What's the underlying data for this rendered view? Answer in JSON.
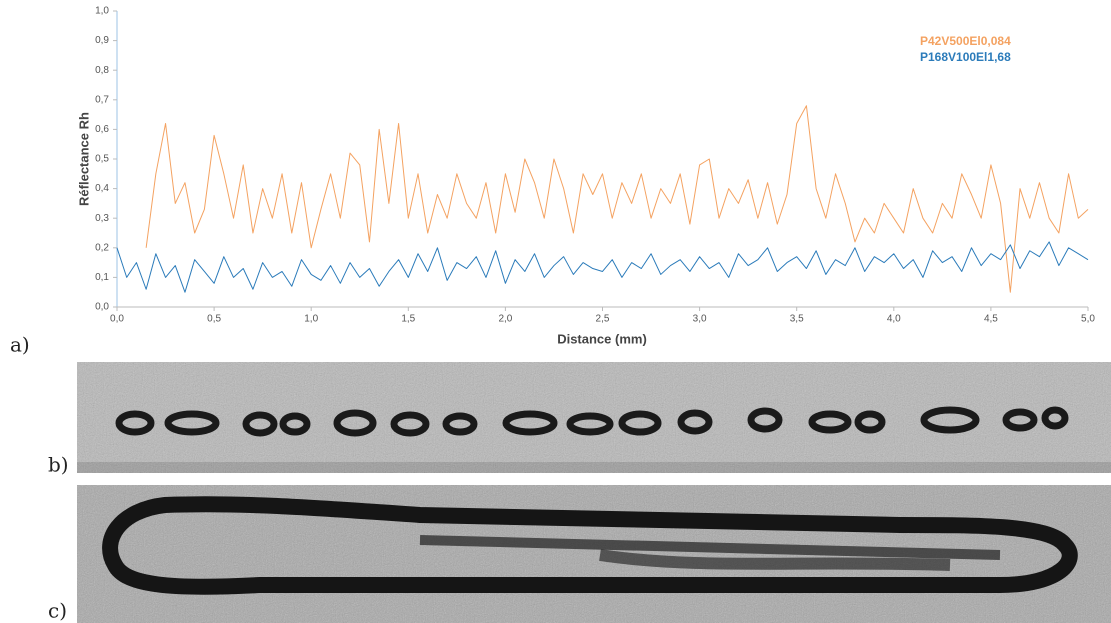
{
  "chart_data": {
    "type": "line",
    "y_label": "Réflectance Rh",
    "x_label": "Distance (mm)",
    "x": [
      0,
      0.05,
      0.1,
      0.15,
      0.2,
      0.25,
      0.3,
      0.35,
      0.4,
      0.45,
      0.5,
      0.55,
      0.6,
      0.65,
      0.7,
      0.75,
      0.8,
      0.85,
      0.9,
      0.95,
      1,
      1.05,
      1.1,
      1.15,
      1.2,
      1.25,
      1.3,
      1.35,
      1.4,
      1.45,
      1.5,
      1.55,
      1.6,
      1.65,
      1.7,
      1.75,
      1.8,
      1.85,
      1.9,
      1.95,
      2,
      2.05,
      2.1,
      2.15,
      2.2,
      2.25,
      2.3,
      2.35,
      2.4,
      2.45,
      2.5,
      2.55,
      2.6,
      2.65,
      2.7,
      2.75,
      2.8,
      2.85,
      2.9,
      2.95,
      3,
      3.05,
      3.1,
      3.15,
      3.2,
      3.25,
      3.3,
      3.35,
      3.4,
      3.45,
      3.5,
      3.55,
      3.6,
      3.65,
      3.7,
      3.75,
      3.8,
      3.85,
      3.9,
      3.95,
      4,
      4.05,
      4.1,
      4.15,
      4.2,
      4.25,
      4.3,
      4.35,
      4.4,
      4.45,
      4.5,
      4.55,
      4.6,
      4.65,
      4.7,
      4.75,
      4.8,
      4.85,
      4.9,
      4.95,
      5
    ],
    "series": [
      {
        "name": "P42V500El0,084",
        "color": "#f4a261",
        "values": [
          null,
          null,
          null,
          0.2,
          0.45,
          0.62,
          0.35,
          0.42,
          0.25,
          0.33,
          0.58,
          0.45,
          0.3,
          0.48,
          0.25,
          0.4,
          0.3,
          0.45,
          0.25,
          0.42,
          0.2,
          0.33,
          0.45,
          0.3,
          0.52,
          0.48,
          0.22,
          0.6,
          0.35,
          0.62,
          0.3,
          0.45,
          0.25,
          0.38,
          0.3,
          0.45,
          0.35,
          0.3,
          0.42,
          0.25,
          0.45,
          0.32,
          0.5,
          0.42,
          0.3,
          0.5,
          0.4,
          0.25,
          0.45,
          0.38,
          0.45,
          0.3,
          0.42,
          0.35,
          0.45,
          0.3,
          0.4,
          0.35,
          0.45,
          0.28,
          0.48,
          0.5,
          0.3,
          0.4,
          0.35,
          0.43,
          0.3,
          0.42,
          0.28,
          0.38,
          0.62,
          0.68,
          0.4,
          0.3,
          0.45,
          0.35,
          0.22,
          0.3,
          0.25,
          0.35,
          0.3,
          0.25,
          0.4,
          0.3,
          0.25,
          0.35,
          0.3,
          0.45,
          0.38,
          0.3,
          0.48,
          0.35,
          0.05,
          0.4,
          0.3,
          0.42,
          0.3,
          0.25,
          0.45,
          0.3,
          0.33
        ]
      },
      {
        "name": "P168V100El1,68",
        "color": "#2b7bba",
        "values": [
          0.2,
          0.1,
          0.15,
          0.06,
          0.18,
          0.1,
          0.14,
          0.05,
          0.16,
          0.12,
          0.08,
          0.17,
          0.1,
          0.13,
          0.06,
          0.15,
          0.1,
          0.12,
          0.07,
          0.16,
          0.11,
          0.09,
          0.14,
          0.08,
          0.15,
          0.1,
          0.13,
          0.07,
          0.12,
          0.16,
          0.1,
          0.18,
          0.12,
          0.2,
          0.09,
          0.15,
          0.13,
          0.17,
          0.1,
          0.19,
          0.08,
          0.16,
          0.12,
          0.18,
          0.1,
          0.14,
          0.17,
          0.11,
          0.15,
          0.13,
          0.12,
          0.16,
          0.1,
          0.15,
          0.13,
          0.18,
          0.11,
          0.14,
          0.16,
          0.12,
          0.17,
          0.13,
          0.15,
          0.1,
          0.18,
          0.14,
          0.16,
          0.2,
          0.12,
          0.15,
          0.17,
          0.13,
          0.19,
          0.11,
          0.16,
          0.14,
          0.2,
          0.12,
          0.17,
          0.15,
          0.18,
          0.13,
          0.16,
          0.1,
          0.19,
          0.15,
          0.17,
          0.12,
          0.2,
          0.14,
          0.18,
          0.16,
          0.21,
          0.13,
          0.19,
          0.17,
          0.22,
          0.14,
          0.2,
          0.18,
          0.16
        ]
      }
    ],
    "xlim": [
      0,
      5
    ],
    "xticks": [
      {
        "value": 0,
        "label": "0,0"
      },
      {
        "value": 0.5,
        "label": "0,5"
      },
      {
        "value": 1,
        "label": "1,0"
      },
      {
        "value": 1.5,
        "label": "1,5"
      },
      {
        "value": 2,
        "label": "2,0"
      },
      {
        "value": 2.5,
        "label": "2,5"
      },
      {
        "value": 3,
        "label": "3,0"
      },
      {
        "value": 3.5,
        "label": "3,5"
      },
      {
        "value": 4,
        "label": "4,0"
      },
      {
        "value": 4.5,
        "label": "4,5"
      },
      {
        "value": 5,
        "label": "5,0"
      }
    ],
    "ylim": [
      0,
      1
    ],
    "yticks": [
      {
        "value": 0,
        "label": "0,0"
      },
      {
        "value": 0.1,
        "label": "0,1"
      },
      {
        "value": 0.2,
        "label": "0,2"
      },
      {
        "value": 0.3,
        "label": "0,3"
      },
      {
        "value": 0.4,
        "label": "0,4"
      },
      {
        "value": 0.5,
        "label": "0,5"
      },
      {
        "value": 0.6,
        "label": "0,6"
      },
      {
        "value": 0.7,
        "label": "0,7"
      },
      {
        "value": 0.8,
        "label": "0,8"
      },
      {
        "value": 0.9,
        "label": "0,9"
      },
      {
        "value": 1,
        "label": "1,0"
      }
    ],
    "grid": false,
    "legend": "upper right"
  },
  "panel_labels": [
    "a)",
    "b)",
    "c)"
  ]
}
